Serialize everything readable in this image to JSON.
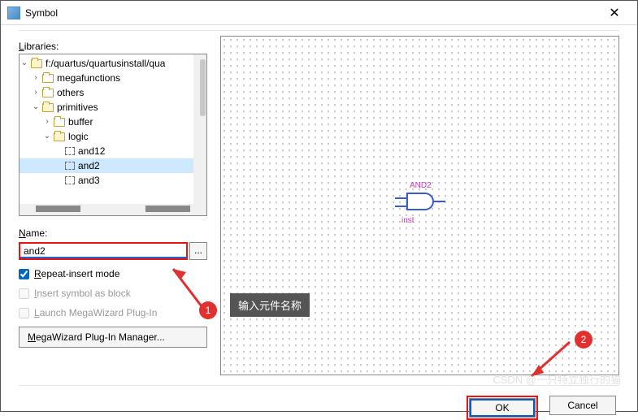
{
  "window": {
    "title": "Symbol",
    "close_glyph": "✕"
  },
  "left": {
    "libraries_label": "Libraries:",
    "name_label": "Name:",
    "name_value": "and2",
    "browse_label": "...",
    "repeat_label": "Repeat-insert mode",
    "insert_block_label": "Insert symbol as block",
    "launch_wiz_label": "Launch MegaWizard Plug-In",
    "wizard_button": "MegaWizard Plug-In Manager..."
  },
  "tree": {
    "root": "f:/quartus/quartusinstall/qua",
    "items": [
      {
        "indent": 1,
        "exp": ">",
        "type": "folder",
        "label": "megafunctions"
      },
      {
        "indent": 1,
        "exp": ">",
        "type": "folder",
        "label": "others"
      },
      {
        "indent": 1,
        "exp": "v",
        "type": "folder-open",
        "label": "primitives"
      },
      {
        "indent": 2,
        "exp": ">",
        "type": "folder",
        "label": "buffer"
      },
      {
        "indent": 2,
        "exp": "v",
        "type": "folder-open",
        "label": "logic"
      },
      {
        "indent": 3,
        "exp": "",
        "type": "sym",
        "label": "and12"
      },
      {
        "indent": 3,
        "exp": "",
        "type": "sym",
        "label": "and2",
        "selected": true
      },
      {
        "indent": 3,
        "exp": "",
        "type": "sym",
        "label": "and3"
      }
    ]
  },
  "canvas": {
    "symbol_label": "AND2",
    "instance": "inst"
  },
  "footer": {
    "ok": "OK",
    "cancel": "Cancel"
  },
  "annotations": {
    "tooltip": "输入元件名称",
    "badge1": "1",
    "badge2": "2"
  },
  "watermark": "CSDN @一只特立独行的猫"
}
